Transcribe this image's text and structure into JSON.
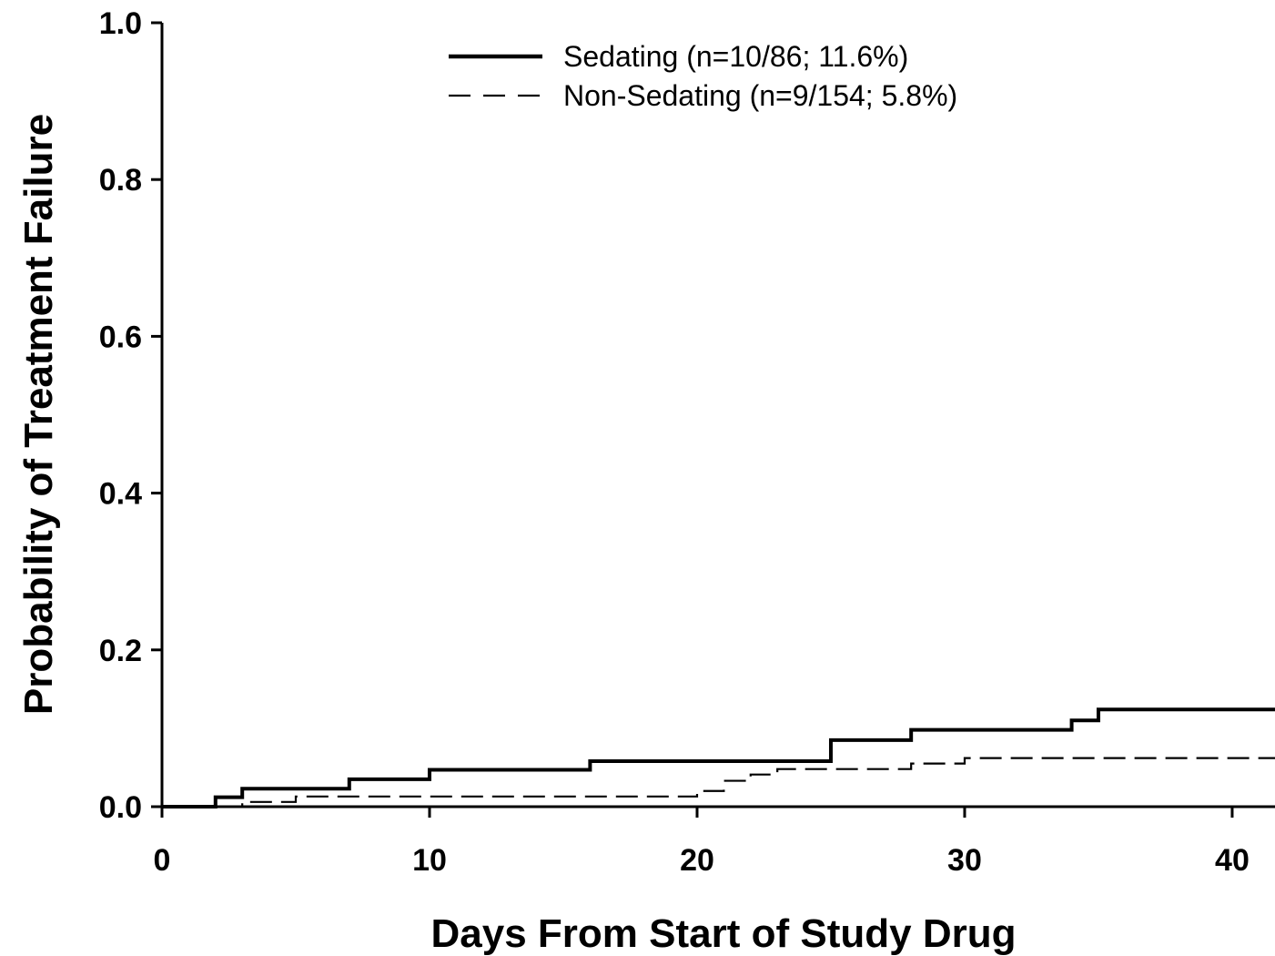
{
  "chart_data": {
    "type": "line",
    "title": "",
    "xlabel": "Days From Start of Study Drug",
    "ylabel": "Probability of Treatment Failure",
    "xlim": [
      0,
      41.6
    ],
    "ylim": [
      0,
      1.0
    ],
    "x_ticks": [
      0,
      10,
      20,
      30,
      40
    ],
    "y_ticks": [
      0.0,
      0.2,
      0.4,
      0.6,
      0.8,
      1.0
    ],
    "x_tick_labels": [
      "0",
      "10",
      "20",
      "30",
      "40"
    ],
    "y_tick_labels": [
      "0.0",
      "0.2",
      "0.4",
      "0.6",
      "0.8",
      "1.0"
    ],
    "grid": false,
    "legend_position": "top-center",
    "series": [
      {
        "name": "Sedating (n=10/86; 11.6%)",
        "style": "solid",
        "color": "#000000",
        "step_points": [
          [
            0,
            0.0
          ],
          [
            2,
            0.012
          ],
          [
            3,
            0.023
          ],
          [
            7,
            0.035
          ],
          [
            10,
            0.047
          ],
          [
            16,
            0.058
          ],
          [
            25,
            0.085
          ],
          [
            28,
            0.098
          ],
          [
            34,
            0.11
          ],
          [
            35,
            0.124
          ],
          [
            41.6,
            0.124
          ]
        ]
      },
      {
        "name": "Non-Sedating (n=9/154; 5.8%)",
        "style": "dashed",
        "color": "#000000",
        "step_points": [
          [
            0,
            0.0
          ],
          [
            3,
            0.006
          ],
          [
            5,
            0.013
          ],
          [
            20,
            0.02
          ],
          [
            21,
            0.033
          ],
          [
            22,
            0.041
          ],
          [
            23,
            0.048
          ],
          [
            28,
            0.055
          ],
          [
            30,
            0.062
          ],
          [
            41.6,
            0.062
          ]
        ]
      }
    ]
  }
}
